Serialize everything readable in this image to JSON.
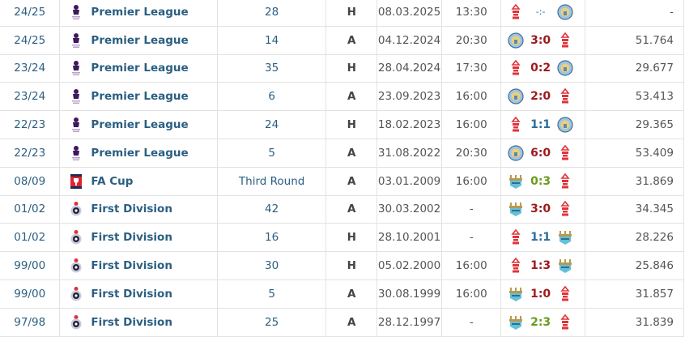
{
  "colors": {
    "link": "#2b5f82",
    "loss": "#9b1b1f",
    "win": "#6b9a1e",
    "draw": "#2c6e9a"
  },
  "matches": [
    {
      "season": "24/25",
      "competition": "Premier League",
      "comp_icon": "premier-league-logo",
      "round": "28",
      "venue": "H",
      "date": "08.03.2025",
      "time": "13:30",
      "home_icon": "nottingham-forest-crest",
      "score": "-:-",
      "outcome": "upcoming",
      "away_icon": "manchester-city-crest",
      "attendance": "-"
    },
    {
      "season": "24/25",
      "competition": "Premier League",
      "comp_icon": "premier-league-logo",
      "round": "14",
      "venue": "A",
      "date": "04.12.2024",
      "time": "20:30",
      "home_icon": "manchester-city-crest",
      "score": "3:0",
      "outcome": "loss",
      "away_icon": "nottingham-forest-crest",
      "attendance": "51.764"
    },
    {
      "season": "23/24",
      "competition": "Premier League",
      "comp_icon": "premier-league-logo",
      "round": "35",
      "venue": "H",
      "date": "28.04.2024",
      "time": "17:30",
      "home_icon": "nottingham-forest-crest",
      "score": "0:2",
      "outcome": "loss",
      "away_icon": "manchester-city-crest",
      "attendance": "29.677"
    },
    {
      "season": "23/24",
      "competition": "Premier League",
      "comp_icon": "premier-league-logo",
      "round": "6",
      "venue": "A",
      "date": "23.09.2023",
      "time": "16:00",
      "home_icon": "manchester-city-crest",
      "score": "2:0",
      "outcome": "loss",
      "away_icon": "nottingham-forest-crest",
      "attendance": "53.413"
    },
    {
      "season": "22/23",
      "competition": "Premier League",
      "comp_icon": "premier-league-logo",
      "round": "24",
      "venue": "H",
      "date": "18.02.2023",
      "time": "16:00",
      "home_icon": "nottingham-forest-crest",
      "score": "1:1",
      "outcome": "draw",
      "away_icon": "manchester-city-crest",
      "attendance": "29.365"
    },
    {
      "season": "22/23",
      "competition": "Premier League",
      "comp_icon": "premier-league-logo",
      "round": "5",
      "venue": "A",
      "date": "31.08.2022",
      "time": "20:30",
      "home_icon": "manchester-city-crest",
      "score": "6:0",
      "outcome": "loss",
      "away_icon": "nottingham-forest-crest",
      "attendance": "53.409"
    },
    {
      "season": "08/09",
      "competition": "FA Cup",
      "comp_icon": "fa-cup-logo",
      "round": "Third Round",
      "venue": "A",
      "date": "03.01.2009",
      "time": "16:00",
      "home_icon": "manchester-city-old-crest",
      "score": "0:3",
      "outcome": "win",
      "away_icon": "nottingham-forest-crest",
      "attendance": "31.869"
    },
    {
      "season": "01/02",
      "competition": "First Division",
      "comp_icon": "first-division-logo",
      "round": "42",
      "venue": "A",
      "date": "30.03.2002",
      "time": "-",
      "home_icon": "manchester-city-old-crest",
      "score": "3:0",
      "outcome": "loss",
      "away_icon": "nottingham-forest-crest",
      "attendance": "34.345"
    },
    {
      "season": "01/02",
      "competition": "First Division",
      "comp_icon": "first-division-logo",
      "round": "16",
      "venue": "H",
      "date": "28.10.2001",
      "time": "-",
      "home_icon": "nottingham-forest-crest",
      "score": "1:1",
      "outcome": "draw",
      "away_icon": "manchester-city-old-crest",
      "attendance": "28.226"
    },
    {
      "season": "99/00",
      "competition": "First Division",
      "comp_icon": "first-division-logo",
      "round": "30",
      "venue": "H",
      "date": "05.02.2000",
      "time": "16:00",
      "home_icon": "nottingham-forest-crest",
      "score": "1:3",
      "outcome": "loss",
      "away_icon": "manchester-city-old-crest",
      "attendance": "25.846"
    },
    {
      "season": "99/00",
      "competition": "First Division",
      "comp_icon": "first-division-logo",
      "round": "5",
      "venue": "A",
      "date": "30.08.1999",
      "time": "16:00",
      "home_icon": "manchester-city-old-crest",
      "score": "1:0",
      "outcome": "loss",
      "away_icon": "nottingham-forest-crest",
      "attendance": "31.857"
    },
    {
      "season": "97/98",
      "competition": "First Division",
      "comp_icon": "first-division-logo",
      "round": "25",
      "venue": "A",
      "date": "28.12.1997",
      "time": "-",
      "home_icon": "manchester-city-old-crest",
      "score": "2:3",
      "outcome": "win",
      "away_icon": "nottingham-forest-crest",
      "attendance": "31.839"
    }
  ]
}
